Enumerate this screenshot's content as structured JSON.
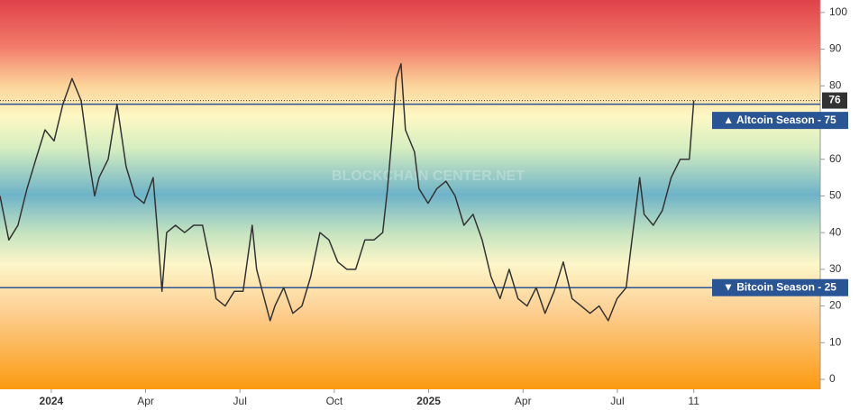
{
  "chart_data": {
    "type": "line",
    "watermark": "BLOCKCHAIN CENTER.NET",
    "x": [
      -1.63,
      -1.35,
      -1.06,
      -0.77,
      -0.49,
      -0.2,
      0.09,
      0.37,
      0.66,
      0.95,
      1.23,
      1.38,
      1.52,
      1.81,
      2.09,
      2.38,
      2.66,
      2.95,
      3.24,
      3.38,
      3.52,
      3.67,
      3.95,
      4.24,
      4.53,
      4.81,
      5.1,
      5.24,
      5.53,
      5.82,
      6.1,
      6.39,
      6.53,
      6.68,
      6.96,
      7.11,
      7.39,
      7.68,
      7.97,
      8.25,
      8.54,
      8.83,
      9.11,
      9.4,
      9.68,
      9.97,
      10.26,
      10.54,
      10.69,
      10.83,
      10.97,
      11.12,
      11.26,
      11.55,
      11.69,
      11.98,
      12.26,
      12.55,
      12.84,
      13.12,
      13.41,
      13.7,
      13.98,
      14.27,
      14.56,
      14.84,
      15.13,
      15.42,
      15.7,
      15.99,
      16.28,
      16.56,
      16.85,
      17.13,
      17.42,
      17.71,
      17.99,
      18.28,
      18.42,
      18.71,
      18.85,
      19.14,
      19.43,
      19.71,
      20,
      20.29,
      20.43
    ],
    "series": [
      {
        "color": "#333333",
        "values": [
          50,
          38,
          42,
          52,
          60,
          68,
          65,
          75,
          82,
          76,
          58,
          50,
          55,
          60,
          75,
          58,
          50,
          48,
          55,
          40,
          24,
          40,
          42,
          40,
          42,
          42,
          30,
          22,
          20,
          24,
          24,
          42,
          30,
          25,
          16,
          20,
          25,
          18,
          20,
          28,
          40,
          38,
          32,
          30,
          30,
          38,
          38,
          40,
          52,
          66,
          82,
          86,
          68,
          62,
          52,
          48,
          52,
          54,
          50,
          42,
          45,
          38,
          28,
          22,
          30,
          22,
          20,
          25,
          18,
          24,
          32,
          22,
          20,
          18,
          20,
          16,
          22,
          25,
          35,
          55,
          45,
          42,
          46,
          55,
          60,
          60,
          76
        ]
      }
    ],
    "xlim": [
      -1.63,
      24.45
    ],
    "xticks": [
      {
        "value": 0,
        "label": "2024"
      },
      {
        "value": 3,
        "label": "Apr"
      },
      {
        "value": 6,
        "label": "Jul"
      },
      {
        "value": 9,
        "label": "Oct"
      },
      {
        "value": 12,
        "label": "2025"
      },
      {
        "value": 15,
        "label": "Apr"
      },
      {
        "value": 18,
        "label": "Jul"
      },
      {
        "value": 20.43,
        "label": "11"
      }
    ],
    "ylim": [
      -2.7,
      103.4
    ],
    "yticks": [
      0,
      10,
      20,
      30,
      40,
      50,
      60,
      70,
      80,
      90,
      100
    ],
    "annotations": [
      {
        "label": "▲ Altcoin Season - 75",
        "value": 75
      },
      {
        "label": "▼ Bitcoin Season - 25",
        "value": 25
      }
    ]
  }
}
